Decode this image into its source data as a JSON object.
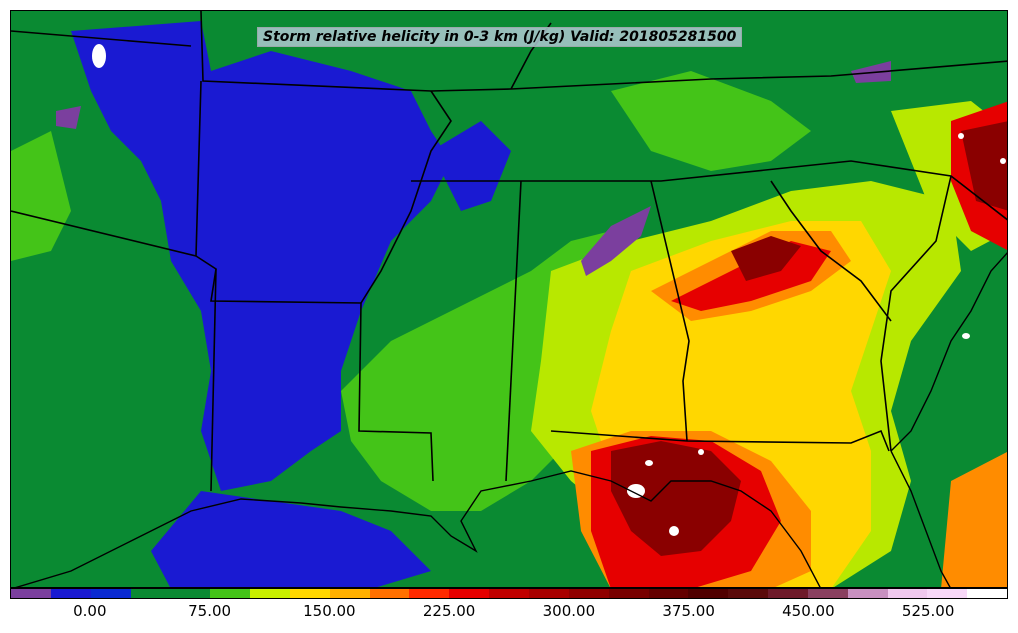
{
  "title": "Storm relative helicity in 0-3 km (J/kg) Valid: 201805281500",
  "colorbar": {
    "colors": [
      "#7b3f9e",
      "#1a1ad2",
      "#0a2ad2",
      "#0a8a32",
      "#0a8a32",
      "#44c418",
      "#c8f000",
      "#ffd700",
      "#ffb000",
      "#ff7000",
      "#ff2a00",
      "#e60000",
      "#c00000",
      "#a80000",
      "#900000",
      "#780000",
      "#640000",
      "#500000",
      "#5a0a0a",
      "#6e1a2a",
      "#8a4060",
      "#c890c0",
      "#f0c8ee",
      "#f8d8f8",
      "#ffffff"
    ],
    "ticks": [
      "0.00",
      "75.00",
      "150.00",
      "225.00",
      "300.00",
      "375.00",
      "450.00",
      "525.00"
    ]
  },
  "map": {
    "palette": {
      "background": "#0a8a32",
      "low": "#1a1ad2",
      "light_green": "#44c418",
      "yellow_green": "#b8e800",
      "yellow": "#ffd700",
      "orange": "#ff8c00",
      "red": "#e60000",
      "dark_red": "#8a0000",
      "purple": "#7b3f9e",
      "white": "#ffffff"
    }
  }
}
